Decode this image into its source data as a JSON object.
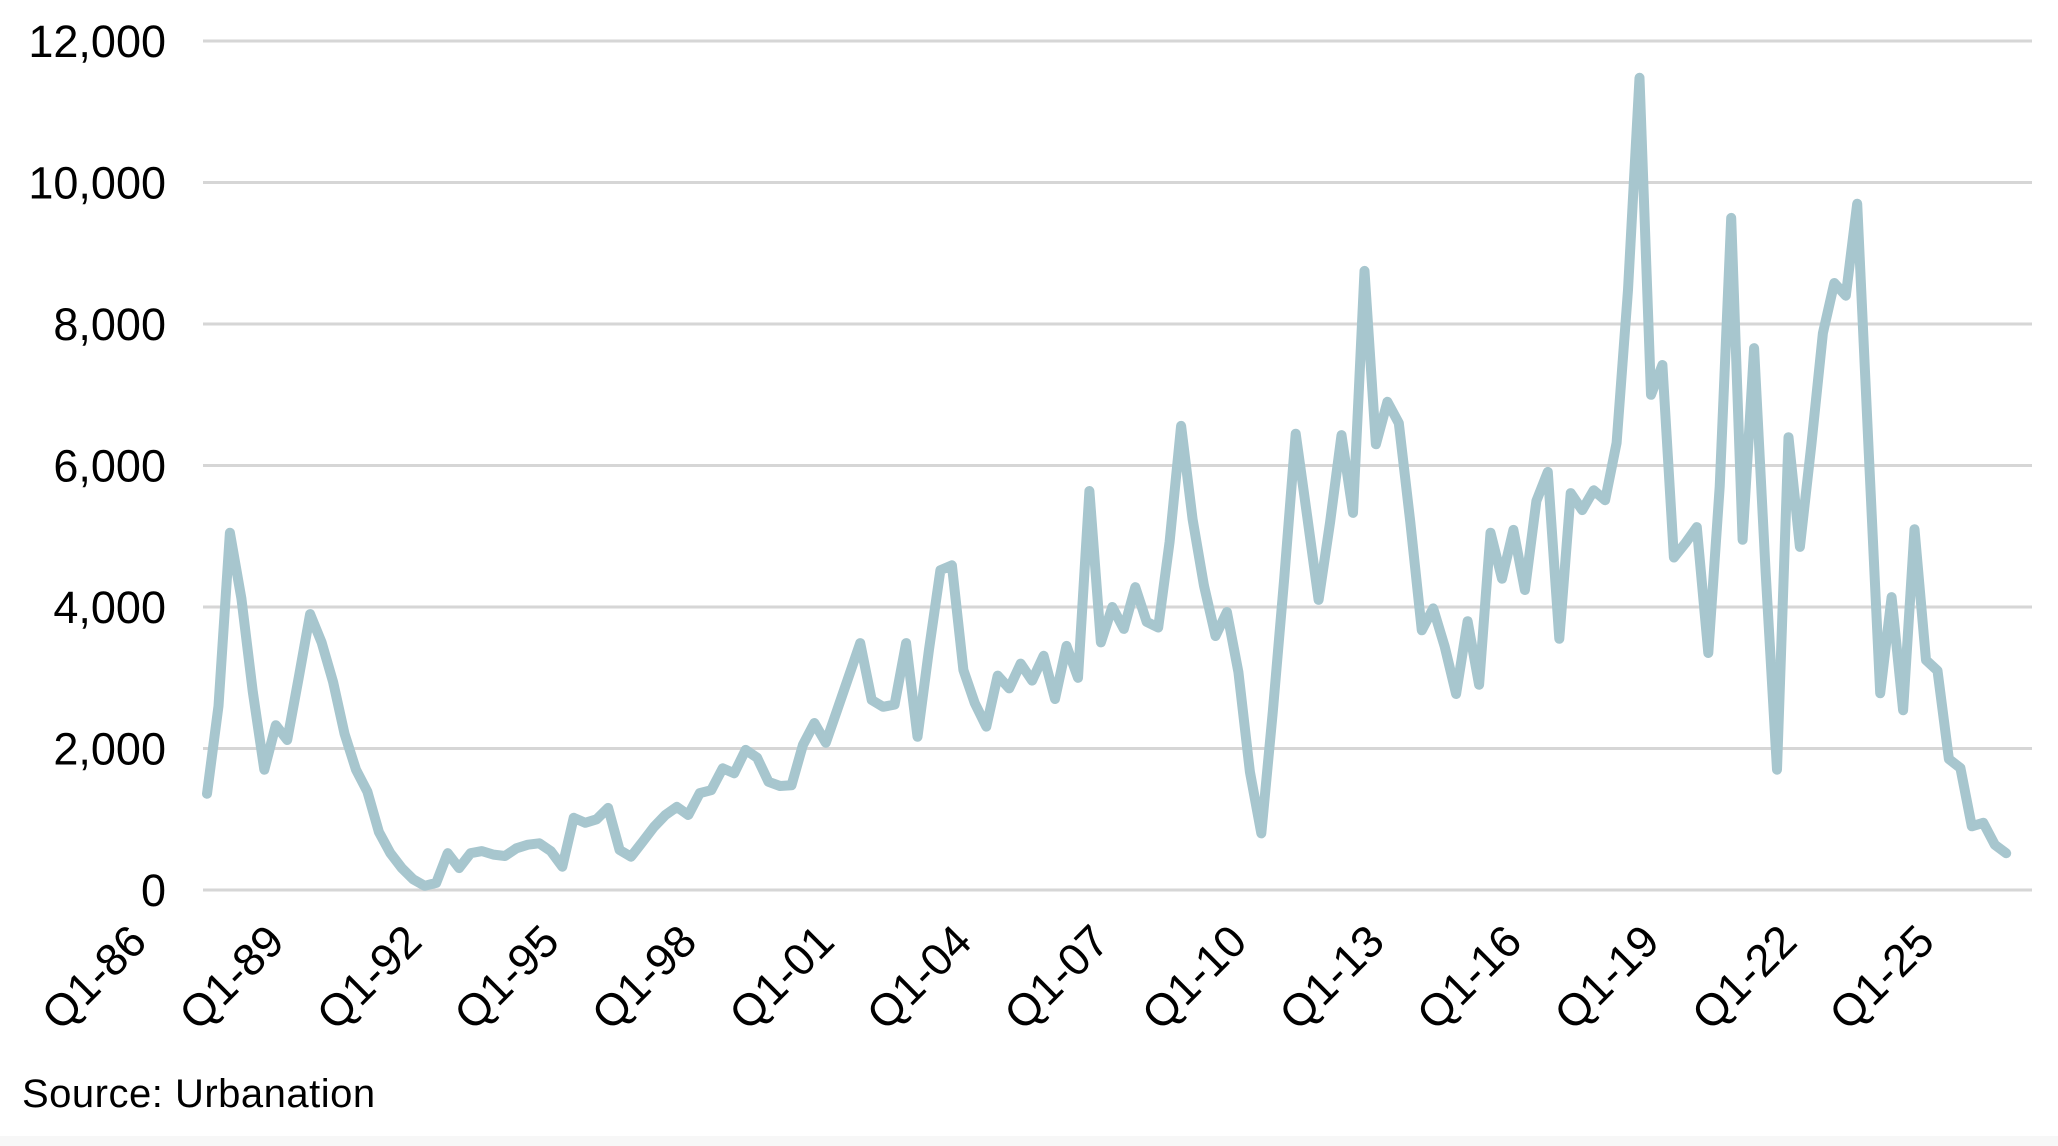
{
  "chart_data": {
    "type": "line",
    "title": "",
    "xlabel": "",
    "ylabel": "",
    "grid": true,
    "legend": "none",
    "frequency": "quarterly",
    "x_start_quarter": "Q1-1986",
    "x_end_quarter": "Q2-2025",
    "ylim": [
      0,
      12000
    ],
    "y_tick_values": [
      0,
      2000,
      4000,
      6000,
      8000,
      10000,
      12000
    ],
    "y_tick_labels": [
      "0",
      "2,000",
      "4,000",
      "6,000",
      "8,000",
      "10,000",
      "12,000"
    ],
    "x_ticks": [
      {
        "i": 0,
        "label": "Q1-86"
      },
      {
        "i": 12,
        "label": "Q1-89"
      },
      {
        "i": 24,
        "label": "Q1-92"
      },
      {
        "i": 36,
        "label": "Q1-95"
      },
      {
        "i": 48,
        "label": "Q1-98"
      },
      {
        "i": 60,
        "label": "Q1-01"
      },
      {
        "i": 72,
        "label": "Q1-04"
      },
      {
        "i": 84,
        "label": "Q1-07"
      },
      {
        "i": 96,
        "label": "Q1-10"
      },
      {
        "i": 108,
        "label": "Q1-13"
      },
      {
        "i": 120,
        "label": "Q1-16"
      },
      {
        "i": 132,
        "label": "Q1-19"
      },
      {
        "i": 144,
        "label": "Q1-22"
      },
      {
        "i": 156,
        "label": "Q1-25"
      }
    ],
    "quarters": [
      "Q1-86",
      "Q2-86",
      "Q3-86",
      "Q4-86",
      "Q1-87",
      "Q2-87",
      "Q3-87",
      "Q4-87",
      "Q1-88",
      "Q2-88",
      "Q3-88",
      "Q4-88",
      "Q1-89",
      "Q2-89",
      "Q3-89",
      "Q4-89",
      "Q1-90",
      "Q2-90",
      "Q3-90",
      "Q4-90",
      "Q1-91",
      "Q2-91",
      "Q3-91",
      "Q4-91",
      "Q1-92",
      "Q2-92",
      "Q3-92",
      "Q4-92",
      "Q1-93",
      "Q2-93",
      "Q3-93",
      "Q4-93",
      "Q1-94",
      "Q2-94",
      "Q3-94",
      "Q4-94",
      "Q1-95",
      "Q2-95",
      "Q3-95",
      "Q4-95",
      "Q1-96",
      "Q2-96",
      "Q3-96",
      "Q4-96",
      "Q1-97",
      "Q2-97",
      "Q3-97",
      "Q4-97",
      "Q1-98",
      "Q2-98",
      "Q3-98",
      "Q4-98",
      "Q1-99",
      "Q2-99",
      "Q3-99",
      "Q4-99",
      "Q1-00",
      "Q2-00",
      "Q3-00",
      "Q4-00",
      "Q1-01",
      "Q2-01",
      "Q3-01",
      "Q4-01",
      "Q1-02",
      "Q2-02",
      "Q3-02",
      "Q4-02",
      "Q1-03",
      "Q2-03",
      "Q3-03",
      "Q4-03",
      "Q1-04",
      "Q2-04",
      "Q3-04",
      "Q4-04",
      "Q1-05",
      "Q2-05",
      "Q3-05",
      "Q4-05",
      "Q1-06",
      "Q2-06",
      "Q3-06",
      "Q4-06",
      "Q1-07",
      "Q2-07",
      "Q3-07",
      "Q4-07",
      "Q1-08",
      "Q2-08",
      "Q3-08",
      "Q4-08",
      "Q1-09",
      "Q2-09",
      "Q3-09",
      "Q4-09",
      "Q1-10",
      "Q2-10",
      "Q3-10",
      "Q4-10",
      "Q1-11",
      "Q2-11",
      "Q3-11",
      "Q4-11",
      "Q1-12",
      "Q2-12",
      "Q3-12",
      "Q4-12",
      "Q1-13",
      "Q2-13",
      "Q3-13",
      "Q4-13",
      "Q1-14",
      "Q2-14",
      "Q3-14",
      "Q4-14",
      "Q1-15",
      "Q2-15",
      "Q3-15",
      "Q4-15",
      "Q1-16",
      "Q2-16",
      "Q3-16",
      "Q4-16",
      "Q1-17",
      "Q2-17",
      "Q3-17",
      "Q4-17",
      "Q1-18",
      "Q2-18",
      "Q3-18",
      "Q4-18",
      "Q1-19",
      "Q2-19",
      "Q3-19",
      "Q4-19",
      "Q1-20",
      "Q2-20",
      "Q3-20",
      "Q4-20",
      "Q1-21",
      "Q2-21",
      "Q3-21",
      "Q4-21",
      "Q1-22",
      "Q2-22",
      "Q3-22",
      "Q4-22",
      "Q1-23",
      "Q2-23",
      "Q3-23",
      "Q4-23",
      "Q1-24",
      "Q2-24",
      "Q3-24",
      "Q4-24",
      "Q1-25",
      "Q2-25"
    ],
    "values": [
      1360,
      2600,
      5050,
      4120,
      2800,
      1700,
      2330,
      2120,
      3000,
      3900,
      3500,
      2940,
      2210,
      1700,
      1390,
      820,
      520,
      310,
      150,
      60,
      100,
      520,
      310,
      520,
      550,
      500,
      480,
      590,
      640,
      660,
      550,
      330,
      1020,
      950,
      1000,
      1160,
      565,
      470,
      680,
      890,
      1060,
      1175,
      1060,
      1370,
      1410,
      1720,
      1650,
      1980,
      1870,
      1530,
      1470,
      1480,
      2050,
      2360,
      2080,
      2550,
      3020,
      3490,
      2685,
      2590,
      2620,
      3490,
      2165,
      3400,
      4520,
      4590,
      3110,
      2640,
      2310,
      3030,
      2850,
      3200,
      2960,
      3310,
      2700,
      3450,
      3000,
      5640,
      3500,
      4000,
      3690,
      4280,
      3790,
      3710,
      4920,
      6560,
      5240,
      4300,
      3590,
      3930,
      3080,
      1670,
      800,
      2520,
      4400,
      6450,
      5280,
      4100,
      5200,
      6430,
      5330,
      8750,
      6300,
      6900,
      6600,
      5200,
      3670,
      3980,
      3440,
      2770,
      3800,
      2900,
      5050,
      4400,
      5090,
      4240,
      5500,
      5910,
      3550,
      5610,
      5370,
      5650,
      5510,
      6320,
      8480,
      11480,
      7000,
      7420,
      4700,
      4900,
      5130,
      3350,
      5700,
      9500,
      4950,
      7660,
      4500,
      1700,
      6400,
      4850,
      6300,
      7870,
      8580,
      8400,
      9700,
      6200,
      2780,
      4140,
      2540,
      5100,
      3250,
      3100,
      1850,
      1725,
      900,
      950,
      640,
      520
    ],
    "line_color": "#a7c6ce",
    "grid_color": "#d6d6d6",
    "text_color": "#000000",
    "source_note": "Source: Urbanation"
  }
}
